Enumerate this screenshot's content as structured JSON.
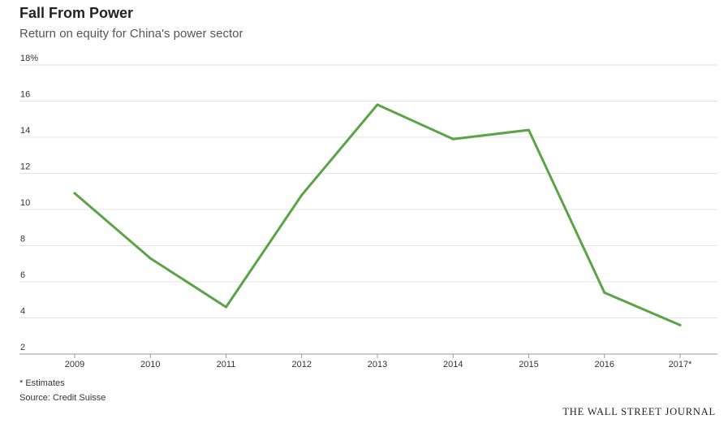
{
  "header": {
    "title": "Fall From Power",
    "subtitle": "Return on equity for China's power sector"
  },
  "footer": {
    "footnote": "* Estimates",
    "source": "Source: Credit Suisse",
    "brand": "THE WALL STREET JOURNAL"
  },
  "chart_data": {
    "type": "line",
    "title": "Fall From Power",
    "subtitle": "Return on equity for China's power sector",
    "categories": [
      "2009",
      "2010",
      "2011",
      "2012",
      "2013",
      "2014",
      "2015",
      "2016",
      "2017*"
    ],
    "series": [
      {
        "values": [
          10.9,
          7.3,
          4.6,
          10.8,
          15.8,
          13.9,
          14.4,
          5.4,
          3.6
        ],
        "color": "#5aa447"
      }
    ],
    "y_ticks": [
      "2",
      "4",
      "6",
      "8",
      "10",
      "12",
      "14",
      "16",
      "18%"
    ],
    "ylim": [
      2,
      18
    ],
    "xlabel": "",
    "ylabel": "",
    "grid": true,
    "legend": "none"
  }
}
